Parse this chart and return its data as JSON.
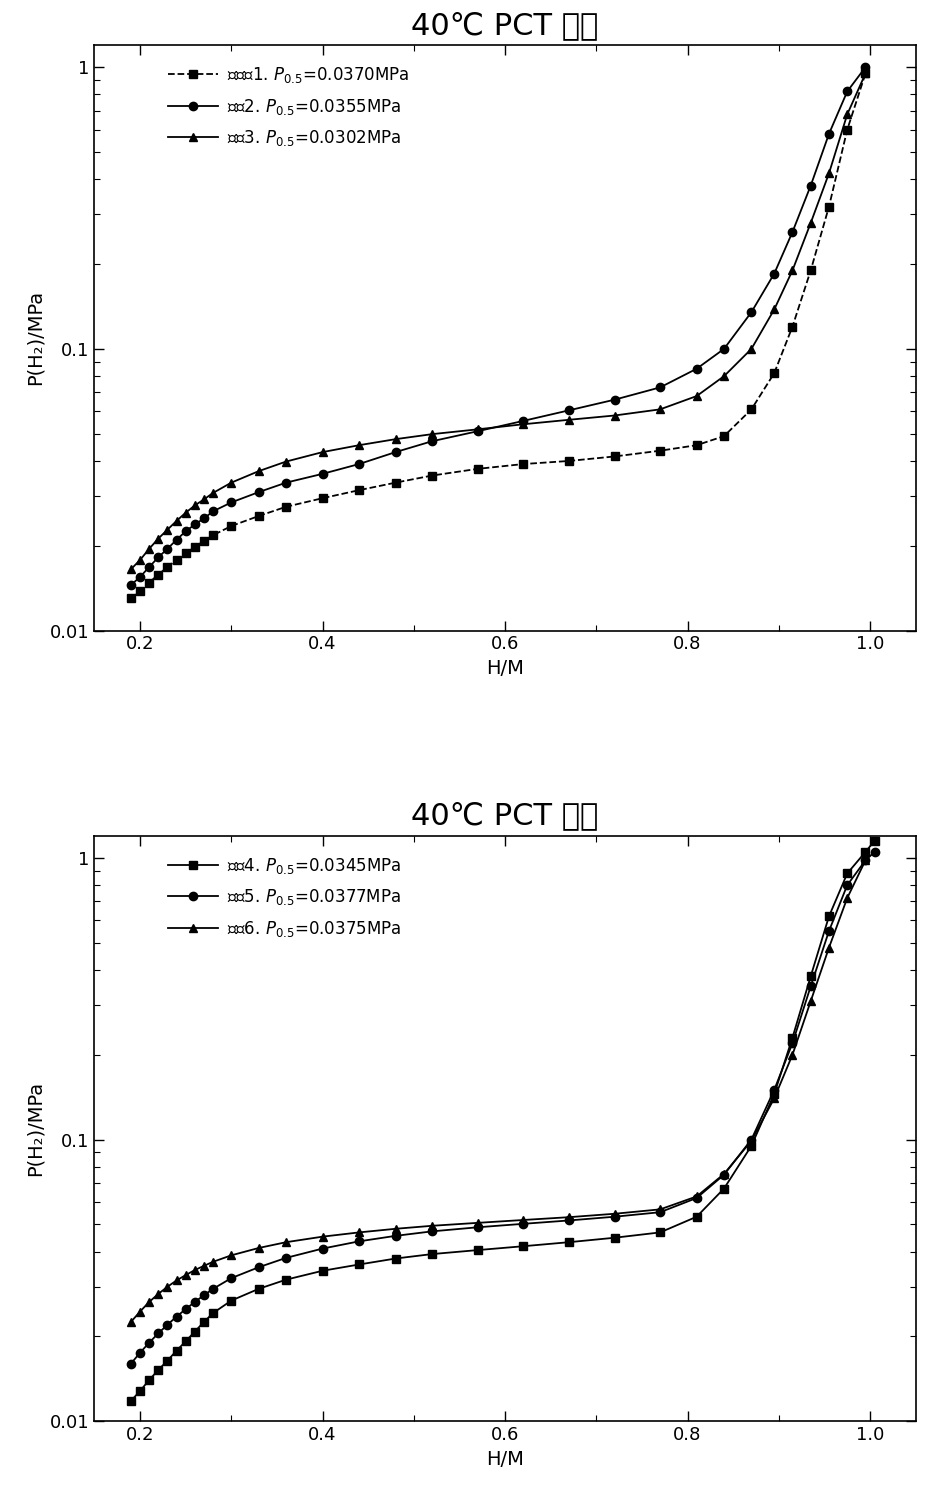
{
  "plot1": {
    "title": "40℃ PCT 曲线",
    "legend": [
      {
        "label": "对比备1. P0.5=0.0370MPa",
        "marker": "s",
        "linestyle": "--"
      },
      {
        "label": "实备2. P0.5=0.0355MPa",
        "marker": "o",
        "linestyle": "-"
      },
      {
        "label": "实备3. P0.5=0.0302MPa",
        "marker": "^",
        "linestyle": "-"
      }
    ],
    "series": [
      {
        "marker": "s",
        "linestyle": "--",
        "x": [
          0.19,
          0.2,
          0.21,
          0.22,
          0.23,
          0.24,
          0.25,
          0.26,
          0.27,
          0.28,
          0.3,
          0.33,
          0.36,
          0.4,
          0.44,
          0.48,
          0.52,
          0.57,
          0.62,
          0.67,
          0.72,
          0.77,
          0.81,
          0.84,
          0.87,
          0.895,
          0.915,
          0.935,
          0.955,
          0.975,
          0.995
        ],
        "y": [
          0.013,
          0.0138,
          0.0148,
          0.0158,
          0.0168,
          0.0178,
          0.0188,
          0.0198,
          0.0208,
          0.0218,
          0.0235,
          0.0255,
          0.0275,
          0.0295,
          0.0315,
          0.0335,
          0.0355,
          0.0375,
          0.039,
          0.04,
          0.0415,
          0.0435,
          0.0455,
          0.049,
          0.061,
          0.082,
          0.12,
          0.19,
          0.32,
          0.6,
          0.95
        ]
      },
      {
        "marker": "o",
        "linestyle": "-",
        "x": [
          0.19,
          0.2,
          0.21,
          0.22,
          0.23,
          0.24,
          0.25,
          0.26,
          0.27,
          0.28,
          0.3,
          0.33,
          0.36,
          0.4,
          0.44,
          0.48,
          0.52,
          0.57,
          0.62,
          0.67,
          0.72,
          0.77,
          0.81,
          0.84,
          0.87,
          0.895,
          0.915,
          0.935,
          0.955,
          0.975,
          0.995
        ],
        "y": [
          0.0145,
          0.0155,
          0.0168,
          0.0182,
          0.0195,
          0.021,
          0.0225,
          0.0238,
          0.025,
          0.0265,
          0.0285,
          0.031,
          0.0335,
          0.036,
          0.039,
          0.043,
          0.047,
          0.051,
          0.0555,
          0.0605,
          0.066,
          0.073,
          0.085,
          0.1,
          0.135,
          0.185,
          0.26,
          0.38,
          0.58,
          0.82,
          1.0
        ]
      },
      {
        "marker": "^",
        "linestyle": "-",
        "x": [
          0.19,
          0.2,
          0.21,
          0.22,
          0.23,
          0.24,
          0.25,
          0.26,
          0.27,
          0.28,
          0.3,
          0.33,
          0.36,
          0.4,
          0.44,
          0.48,
          0.52,
          0.57,
          0.62,
          0.67,
          0.72,
          0.77,
          0.81,
          0.84,
          0.87,
          0.895,
          0.915,
          0.935,
          0.955,
          0.975,
          0.995
        ],
        "y": [
          0.0165,
          0.0178,
          0.0195,
          0.0212,
          0.0228,
          0.0245,
          0.0262,
          0.0278,
          0.0292,
          0.0308,
          0.0335,
          0.0368,
          0.0398,
          0.043,
          0.0455,
          0.0478,
          0.0498,
          0.0518,
          0.054,
          0.056,
          0.058,
          0.061,
          0.068,
          0.08,
          0.1,
          0.138,
          0.19,
          0.28,
          0.42,
          0.68,
          0.95
        ]
      }
    ]
  },
  "plot2": {
    "title": "40℃ PCT 曲线",
    "legend": [
      {
        "label": "实备4. P0.5=0.0345MPa",
        "marker": "s",
        "linestyle": "-"
      },
      {
        "label": "实备5. P0.5=0.0377MPa",
        "marker": "o",
        "linestyle": "-"
      },
      {
        "label": "实备6. P0.5=0.0375MPa",
        "marker": "^",
        "linestyle": "-"
      }
    ],
    "series": [
      {
        "marker": "s",
        "linestyle": "-",
        "x": [
          0.19,
          0.2,
          0.21,
          0.22,
          0.23,
          0.24,
          0.25,
          0.26,
          0.27,
          0.28,
          0.3,
          0.33,
          0.36,
          0.4,
          0.44,
          0.48,
          0.52,
          0.57,
          0.62,
          0.67,
          0.72,
          0.77,
          0.81,
          0.84,
          0.87,
          0.895,
          0.915,
          0.935,
          0.955,
          0.975,
          0.995,
          1.005
        ],
        "y": [
          0.0118,
          0.0128,
          0.014,
          0.0152,
          0.0164,
          0.0178,
          0.0192,
          0.0208,
          0.0225,
          0.0242,
          0.0268,
          0.0295,
          0.0318,
          0.0342,
          0.036,
          0.0378,
          0.0392,
          0.0405,
          0.0418,
          0.0432,
          0.0448,
          0.0468,
          0.0532,
          0.067,
          0.095,
          0.145,
          0.23,
          0.38,
          0.62,
          0.88,
          1.05,
          1.15
        ]
      },
      {
        "marker": "o",
        "linestyle": "-",
        "x": [
          0.19,
          0.2,
          0.21,
          0.22,
          0.23,
          0.24,
          0.25,
          0.26,
          0.27,
          0.28,
          0.3,
          0.33,
          0.36,
          0.4,
          0.44,
          0.48,
          0.52,
          0.57,
          0.62,
          0.67,
          0.72,
          0.77,
          0.81,
          0.84,
          0.87,
          0.895,
          0.915,
          0.935,
          0.955,
          0.975,
          0.995,
          1.005
        ],
        "y": [
          0.016,
          0.0175,
          0.019,
          0.0205,
          0.022,
          0.0235,
          0.025,
          0.0265,
          0.028,
          0.0295,
          0.0322,
          0.0352,
          0.038,
          0.041,
          0.0435,
          0.0455,
          0.0472,
          0.0488,
          0.0502,
          0.0516,
          0.0532,
          0.0552,
          0.062,
          0.075,
          0.1,
          0.15,
          0.22,
          0.35,
          0.55,
          0.8,
          0.98,
          1.05
        ]
      },
      {
        "marker": "^",
        "linestyle": "-",
        "x": [
          0.19,
          0.2,
          0.21,
          0.22,
          0.23,
          0.24,
          0.25,
          0.26,
          0.27,
          0.28,
          0.3,
          0.33,
          0.36,
          0.4,
          0.44,
          0.48,
          0.52,
          0.57,
          0.62,
          0.67,
          0.72,
          0.77,
          0.81,
          0.84,
          0.87,
          0.895,
          0.915,
          0.935,
          0.955,
          0.975,
          0.995
        ],
        "y": [
          0.0225,
          0.0245,
          0.0265,
          0.0283,
          0.03,
          0.0316,
          0.033,
          0.0344,
          0.0356,
          0.0368,
          0.0388,
          0.0412,
          0.0432,
          0.0452,
          0.0468,
          0.0482,
          0.0494,
          0.0506,
          0.0518,
          0.053,
          0.0545,
          0.0565,
          0.0628,
          0.0755,
          0.099,
          0.14,
          0.2,
          0.31,
          0.48,
          0.72,
          0.98
        ]
      }
    ]
  },
  "xlabel": "H/M",
  "ylabel": "P(H₂)/MPa",
  "xlim": [
    0.15,
    1.05
  ],
  "ylim": [
    0.01,
    1.2
  ],
  "yticks": [
    0.01,
    0.1,
    1
  ],
  "xticks": [
    0.2,
    0.4,
    0.6,
    0.8,
    1.0
  ],
  "marker_size": 6,
  "linewidth": 1.3,
  "title_fontsize": 22,
  "label_fontsize": 14,
  "tick_fontsize": 13,
  "legend_fontsize": 12
}
